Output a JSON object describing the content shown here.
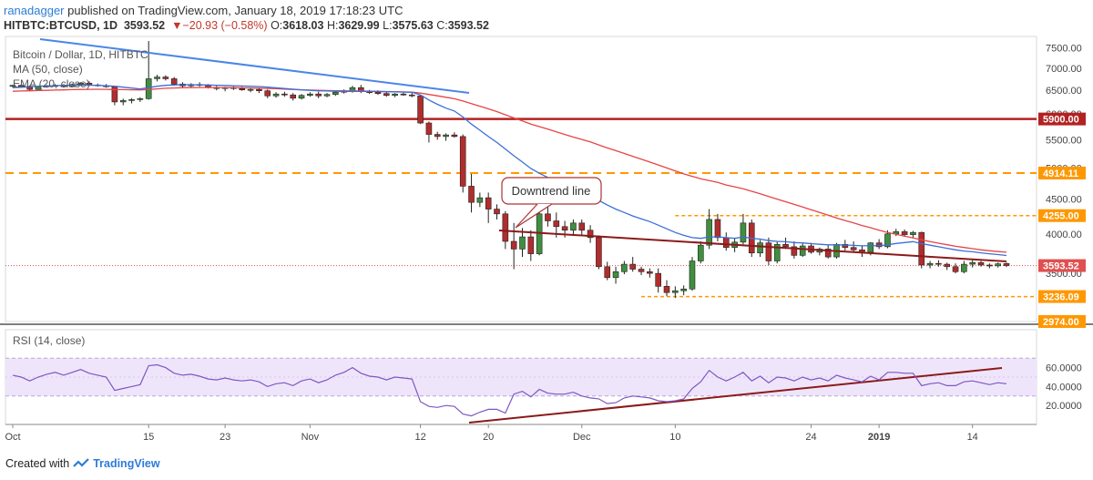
{
  "header": {
    "author": "ranadagger",
    "published": "published on TradingView.com, January 18, 2019 17:18:23 UTC",
    "symbol": "HITBTC:BTCUSD, 1D",
    "last": "3593.52",
    "change": "▼−20.93 (−0.58%)",
    "o_label": "O:",
    "o": "3618.03",
    "h_label": "H:",
    "h": "3629.99",
    "l_label": "L:",
    "l": "3575.63",
    "c_label": "C:",
    "c": "3593.52"
  },
  "legend": {
    "title": "Bitcoin / Dollar, 1D, HITBTC",
    "ma": "MA (50, close)",
    "ema": "EMA (20, close)"
  },
  "rsi_legend": "RSI (14, close)",
  "annotation": "Downtrend line",
  "footer": {
    "created": "Created with",
    "brand": "TradingView"
  },
  "colors": {
    "up": "#3f8f3f",
    "down": "#b12d2d",
    "ma": "#e64545",
    "ema": "#3a6fd8",
    "resistance": "#b22222",
    "dashed": "#ff9800",
    "trend": "#8b1a1a",
    "rsi": "#7e57c2"
  },
  "chart_data": {
    "type": "candlestick",
    "price_axis": {
      "ylim": [
        2974,
        7800
      ],
      "ticks": [
        "7500.00",
        "7000.00",
        "6500.00",
        "6000.00",
        "5500.00",
        "5000.00",
        "4500.00",
        "4000.00",
        "3500.00",
        "3000.00"
      ],
      "scale": "log"
    },
    "x_labels": [
      "Oct",
      "15",
      "23",
      "Nov",
      "12",
      "20",
      "Dec",
      "10",
      "24",
      "2019",
      "14"
    ],
    "levels": [
      {
        "label": "5900.00",
        "value": 5900,
        "style": "solid"
      },
      {
        "label": "4914.11",
        "value": 4914.11,
        "style": "dashed"
      },
      {
        "label": "4255.00",
        "value": 4255,
        "style": "dashed"
      },
      {
        "label": "3593.52",
        "value": 3593.52,
        "style": "dotted"
      },
      {
        "label": "3236.09",
        "value": 3236.09,
        "style": "dashed"
      },
      {
        "label": "2974.00",
        "value": 2974,
        "style": "label"
      }
    ],
    "candles": [
      [
        6600,
        6620,
        6560,
        6610
      ],
      [
        6610,
        6640,
        6570,
        6590
      ],
      [
        6590,
        6610,
        6480,
        6520
      ],
      [
        6520,
        6600,
        6510,
        6580
      ],
      [
        6580,
        6620,
        6560,
        6600
      ],
      [
        6600,
        6640,
        6580,
        6610
      ],
      [
        6610,
        6640,
        6560,
        6580
      ],
      [
        6580,
        6650,
        6570,
        6630
      ],
      [
        6630,
        6680,
        6610,
        6660
      ],
      [
        6660,
        6700,
        6600,
        6620
      ],
      [
        6620,
        6650,
        6580,
        6600
      ],
      [
        6600,
        6640,
        6560,
        6580
      ],
      [
        6580,
        6600,
        6180,
        6250
      ],
      [
        6250,
        6320,
        6180,
        6280
      ],
      [
        6280,
        6330,
        6220,
        6300
      ],
      [
        6300,
        6350,
        6250,
        6320
      ],
      [
        6320,
        7680,
        6300,
        6760
      ],
      [
        6760,
        6850,
        6700,
        6800
      ],
      [
        6800,
        6840,
        6720,
        6760
      ],
      [
        6760,
        6800,
        6600,
        6640
      ],
      [
        6640,
        6680,
        6560,
        6600
      ],
      [
        6600,
        6660,
        6560,
        6630
      ],
      [
        6630,
        6680,
        6580,
        6610
      ],
      [
        6610,
        6640,
        6540,
        6560
      ],
      [
        6560,
        6600,
        6500,
        6540
      ],
      [
        6540,
        6580,
        6480,
        6560
      ],
      [
        6560,
        6600,
        6510,
        6540
      ],
      [
        6540,
        6580,
        6490,
        6510
      ],
      [
        6510,
        6560,
        6460,
        6520
      ],
      [
        6520,
        6560,
        6440,
        6490
      ],
      [
        6490,
        6520,
        6330,
        6380
      ],
      [
        6380,
        6460,
        6340,
        6420
      ],
      [
        6420,
        6470,
        6360,
        6400
      ],
      [
        6400,
        6440,
        6280,
        6330
      ],
      [
        6330,
        6420,
        6300,
        6390
      ],
      [
        6390,
        6460,
        6360,
        6420
      ],
      [
        6420,
        6470,
        6330,
        6380
      ],
      [
        6380,
        6440,
        6350,
        6410
      ],
      [
        6410,
        6500,
        6380,
        6460
      ],
      [
        6460,
        6520,
        6430,
        6480
      ],
      [
        6480,
        6600,
        6450,
        6560
      ],
      [
        6560,
        6620,
        6440,
        6470
      ],
      [
        6470,
        6510,
        6420,
        6460
      ],
      [
        6460,
        6500,
        6400,
        6430
      ],
      [
        6430,
        6470,
        6360,
        6390
      ],
      [
        6390,
        6440,
        6350,
        6420
      ],
      [
        6420,
        6450,
        6380,
        6400
      ],
      [
        6400,
        6450,
        6350,
        6380
      ],
      [
        6380,
        6400,
        5800,
        5820
      ],
      [
        5820,
        5850,
        5450,
        5600
      ],
      [
        5600,
        5650,
        5500,
        5560
      ],
      [
        5560,
        5620,
        5480,
        5590
      ],
      [
        5590,
        5640,
        5540,
        5560
      ],
      [
        5560,
        5600,
        4600,
        4700
      ],
      [
        4700,
        4900,
        4300,
        4450
      ],
      [
        4450,
        4600,
        4380,
        4520
      ],
      [
        4520,
        4600,
        4150,
        4350
      ],
      [
        4350,
        4420,
        4200,
        4280
      ],
      [
        4280,
        4320,
        3800,
        3900
      ],
      [
        3900,
        4150,
        3550,
        3800
      ],
      [
        3800,
        4080,
        3700,
        3960
      ],
      [
        3960,
        4050,
        3650,
        3740
      ],
      [
        3740,
        4400,
        3720,
        4280
      ],
      [
        4280,
        4420,
        4100,
        4180
      ],
      [
        4180,
        4300,
        3950,
        4100
      ],
      [
        4100,
        4180,
        3950,
        4050
      ],
      [
        4050,
        4200,
        3980,
        4150
      ],
      [
        4150,
        4200,
        3970,
        4050
      ],
      [
        4050,
        4120,
        3880,
        3950
      ],
      [
        3950,
        3980,
        3550,
        3580
      ],
      [
        3580,
        3640,
        3420,
        3450
      ],
      [
        3450,
        3580,
        3380,
        3520
      ],
      [
        3520,
        3650,
        3490,
        3610
      ],
      [
        3610,
        3700,
        3520,
        3550
      ],
      [
        3550,
        3580,
        3480,
        3520
      ],
      [
        3520,
        3560,
        3450,
        3500
      ],
      [
        3500,
        3560,
        3280,
        3350
      ],
      [
        3350,
        3420,
        3240,
        3280
      ],
      [
        3280,
        3350,
        3220,
        3300
      ],
      [
        3300,
        3360,
        3250,
        3320
      ],
      [
        3320,
        3700,
        3300,
        3650
      ],
      [
        3650,
        3900,
        3620,
        3850
      ],
      [
        3850,
        4350,
        3800,
        4200
      ],
      [
        4200,
        4280,
        3900,
        3950
      ],
      [
        3950,
        4020,
        3780,
        3820
      ],
      [
        3820,
        3950,
        3760,
        3890
      ],
      [
        3890,
        4280,
        3860,
        4150
      ],
      [
        4150,
        4200,
        3700,
        3750
      ],
      [
        3750,
        3920,
        3700,
        3880
      ],
      [
        3880,
        3950,
        3600,
        3650
      ],
      [
        3650,
        3900,
        3620,
        3860
      ],
      [
        3860,
        3950,
        3800,
        3830
      ],
      [
        3830,
        3900,
        3680,
        3720
      ],
      [
        3720,
        3870,
        3700,
        3840
      ],
      [
        3840,
        3880,
        3740,
        3760
      ],
      [
        3760,
        3820,
        3720,
        3800
      ],
      [
        3800,
        3850,
        3680,
        3700
      ],
      [
        3700,
        3880,
        3680,
        3860
      ],
      [
        3860,
        3920,
        3780,
        3820
      ],
      [
        3820,
        3900,
        3760,
        3790
      ],
      [
        3790,
        3850,
        3700,
        3760
      ],
      [
        3760,
        3890,
        3720,
        3880
      ],
      [
        3880,
        3930,
        3800,
        3830
      ],
      [
        3830,
        4050,
        3810,
        4000
      ],
      [
        4000,
        4070,
        3970,
        4030
      ],
      [
        4030,
        4060,
        3960,
        3990
      ],
      [
        3990,
        4040,
        3950,
        4020
      ],
      [
        4020,
        4030,
        3560,
        3600
      ],
      [
        3600,
        3650,
        3560,
        3620
      ],
      [
        3620,
        3660,
        3580,
        3610
      ],
      [
        3610,
        3630,
        3540,
        3580
      ],
      [
        3580,
        3620,
        3500,
        3520
      ],
      [
        3520,
        3650,
        3500,
        3610
      ],
      [
        3610,
        3660,
        3570,
        3630
      ],
      [
        3630,
        3650,
        3580,
        3600
      ],
      [
        3600,
        3620,
        3560,
        3590
      ],
      [
        3590,
        3630,
        3570,
        3615
      ],
      [
        3618.03,
        3629.99,
        3575.63,
        3593.52
      ]
    ],
    "ema20": [
      6560,
      6568,
      6580,
      6590,
      6598,
      6605,
      6610,
      6612,
      6613,
      6612,
      6610,
      6600,
      6590,
      6570,
      6550,
      6530,
      6560,
      6590,
      6610,
      6620,
      6625,
      6625,
      6622,
      6618,
      6612,
      6608,
      6602,
      6596,
      6590,
      6584,
      6570,
      6555,
      6540,
      6525,
      6510,
      6500,
      6490,
      6485,
      6480,
      6478,
      6478,
      6478,
      6476,
      6474,
      6470,
      6466,
      6462,
      6458,
      6400,
      6290,
      6200,
      6120,
      6060,
      5940,
      5800,
      5680,
      5560,
      5450,
      5330,
      5210,
      5100,
      4990,
      4910,
      4840,
      4770,
      4700,
      4640,
      4590,
      4540,
      4480,
      4410,
      4350,
      4300,
      4250,
      4210,
      4170,
      4120,
      4070,
      4020,
      3980,
      3950,
      3940,
      3960,
      3960,
      3950,
      3940,
      3960,
      3940,
      3930,
      3910,
      3900,
      3895,
      3885,
      3880,
      3870,
      3862,
      3855,
      3855,
      3852,
      3848,
      3842,
      3845,
      3842,
      3856,
      3872,
      3884,
      3896,
      3870,
      3850,
      3830,
      3810,
      3790,
      3775,
      3765,
      3752,
      3740,
      3730,
      3718
    ],
    "ma50": [
      6480,
      6485,
      6490,
      6495,
      6500,
      6505,
      6510,
      6515,
      6520,
      6522,
      6524,
      6522,
      6518,
      6515,
      6512,
      6510,
      6520,
      6532,
      6545,
      6552,
      6558,
      6560,
      6562,
      6562,
      6562,
      6562,
      6560,
      6556,
      6552,
      6548,
      6542,
      6536,
      6528,
      6520,
      6512,
      6505,
      6500,
      6496,
      6492,
      6490,
      6488,
      6485,
      6482,
      6478,
      6474,
      6470,
      6466,
      6462,
      6440,
      6410,
      6380,
      6350,
      6318,
      6270,
      6215,
      6160,
      6105,
      6050,
      5985,
      5920,
      5860,
      5800,
      5750,
      5700,
      5650,
      5600,
      5550,
      5505,
      5460,
      5405,
      5350,
      5300,
      5250,
      5200,
      5150,
      5100,
      5050,
      5000,
      4950,
      4900,
      4860,
      4820,
      4790,
      4760,
      4720,
      4690,
      4660,
      4620,
      4580,
      4540,
      4500,
      4460,
      4420,
      4380,
      4340,
      4300,
      4260,
      4220,
      4185,
      4150,
      4115,
      4085,
      4050,
      4020,
      3995,
      3970,
      3945,
      3920,
      3898,
      3876,
      3856,
      3836,
      3820,
      3805,
      3790,
      3778,
      3768,
      3760
    ],
    "rsi": {
      "ylim": [
        0,
        100
      ],
      "ticks": [
        "60.0000",
        "40.0000",
        "20.0000"
      ],
      "bands": [
        70,
        30
      ],
      "values": [
        52,
        50,
        46,
        50,
        53,
        55,
        52,
        55,
        58,
        54,
        52,
        50,
        36,
        38,
        40,
        42,
        62,
        63,
        60,
        54,
        52,
        53,
        51,
        48,
        47,
        49,
        47,
        46,
        47,
        45,
        40,
        43,
        44,
        41,
        46,
        48,
        44,
        47,
        52,
        55,
        60,
        54,
        51,
        50,
        47,
        50,
        49,
        48,
        24,
        19,
        18,
        20,
        19,
        11,
        9,
        13,
        16,
        16,
        12,
        32,
        35,
        29,
        37,
        33,
        32,
        32,
        34,
        30,
        28,
        27,
        22,
        23,
        28,
        30,
        29,
        28,
        25,
        24,
        25,
        27,
        38,
        45,
        57,
        50,
        46,
        50,
        55,
        46,
        51,
        44,
        50,
        49,
        46,
        50,
        47,
        49,
        46,
        52,
        49,
        47,
        45,
        51,
        47,
        55,
        55,
        54,
        54,
        41,
        43,
        44,
        41,
        41,
        45,
        46,
        44,
        42,
        44,
        43
      ]
    }
  }
}
